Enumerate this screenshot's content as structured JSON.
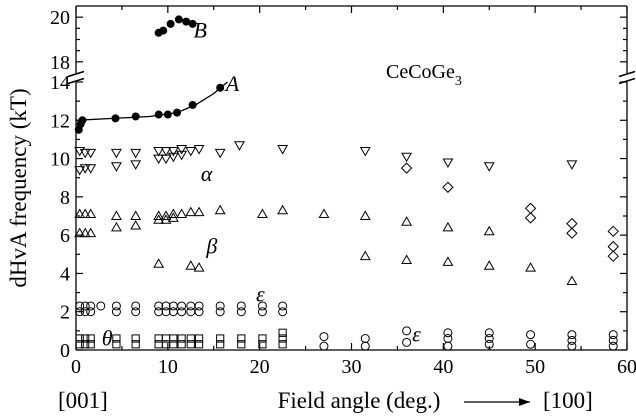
{
  "chart_data": {
    "type": "scatter",
    "title": "",
    "xlabel": "Field angle (deg.)",
    "ylabel": "dHvA frequency (kT)",
    "xlim": [
      0,
      60
    ],
    "x_ticks": [
      0,
      10,
      20,
      30,
      40,
      50,
      60
    ],
    "lower_panel": {
      "ylim": [
        0,
        14
      ],
      "y_ticks": [
        0,
        2,
        4,
        6,
        8,
        10,
        12,
        14
      ]
    },
    "upper_panel": {
      "ylim": [
        17.5,
        20.5
      ],
      "y_ticks": [
        18,
        20
      ]
    },
    "axis_break": true,
    "compound_label": {
      "base": "CeCoGe",
      "sub": "3"
    },
    "direction_labels": {
      "start": "[001]",
      "end": "[100]"
    },
    "branch_labels": [
      {
        "text": "B",
        "x": 12.8,
        "y": 19.4
      },
      {
        "text": "A",
        "x": 16.3,
        "y": 13.9
      },
      {
        "text": "α",
        "x": 13.6,
        "y": 9.2
      },
      {
        "text": "β",
        "x": 14.2,
        "y": 5.4
      },
      {
        "text": "ε",
        "x": 19.6,
        "y": 2.9
      },
      {
        "text": "ε",
        "x": 36.6,
        "y": 0.8
      },
      {
        "text": "θ",
        "x": 2.8,
        "y": 0.6
      }
    ],
    "series": [
      {
        "marker": "filled-circle",
        "points": [
          [
            0.3,
            11.5
          ],
          [
            0.5,
            11.8
          ],
          [
            0.7,
            12.0
          ],
          [
            4.3,
            12.1
          ],
          [
            6.5,
            12.2
          ],
          [
            9,
            12.3
          ],
          [
            10,
            12.3
          ],
          [
            11,
            12.4
          ],
          [
            12.7,
            12.8
          ],
          [
            15.7,
            13.7
          ],
          [
            9,
            19.3
          ],
          [
            9.5,
            19.4
          ],
          [
            10.3,
            19.7
          ],
          [
            11.2,
            19.9
          ],
          [
            12,
            19.8
          ],
          [
            12.7,
            19.7
          ]
        ]
      },
      {
        "marker": "down-triangle",
        "points": [
          [
            0.4,
            9.4
          ],
          [
            0.4,
            10.4
          ],
          [
            1,
            9.5
          ],
          [
            1,
            10.3
          ],
          [
            1.6,
            9.5
          ],
          [
            1.6,
            10.3
          ],
          [
            4.4,
            9.6
          ],
          [
            4.4,
            10.3
          ],
          [
            6.5,
            9.7
          ],
          [
            6.5,
            10.3
          ],
          [
            9,
            10.0
          ],
          [
            9,
            10.4
          ],
          [
            9.8,
            10.0
          ],
          [
            9.8,
            10.4
          ],
          [
            10.6,
            10.1
          ],
          [
            10.6,
            10.4
          ],
          [
            11.5,
            10.2
          ],
          [
            11.5,
            10.5
          ],
          [
            12.5,
            10.4
          ],
          [
            13.4,
            10.5
          ],
          [
            15.7,
            10.3
          ],
          [
            17.8,
            10.7
          ],
          [
            22.5,
            10.5
          ],
          [
            31.5,
            10.4
          ],
          [
            36,
            10.1
          ],
          [
            40.5,
            9.8
          ],
          [
            45,
            9.6
          ],
          [
            54,
            9.7
          ]
        ]
      },
      {
        "marker": "diamond",
        "points": [
          [
            36,
            9.5
          ],
          [
            40.5,
            8.5
          ],
          [
            49.5,
            7.4
          ],
          [
            49.5,
            6.9
          ],
          [
            54,
            6.6
          ],
          [
            54,
            6.1
          ],
          [
            58.5,
            6.2
          ],
          [
            58.5,
            5.4
          ],
          [
            58.5,
            4.9
          ]
        ]
      },
      {
        "marker": "up-triangle",
        "points": [
          [
            0.4,
            6.1
          ],
          [
            0.4,
            7.1
          ],
          [
            1,
            6.1
          ],
          [
            1,
            7.1
          ],
          [
            1.6,
            6.1
          ],
          [
            1.6,
            7.1
          ],
          [
            4.4,
            6.4
          ],
          [
            4.4,
            7.0
          ],
          [
            6.5,
            6.5
          ],
          [
            6.5,
            7.0
          ],
          [
            9,
            6.8
          ],
          [
            9,
            7.0
          ],
          [
            9.8,
            6.8
          ],
          [
            9.8,
            7.0
          ],
          [
            10.6,
            6.9
          ],
          [
            10.6,
            7.1
          ],
          [
            11.5,
            7.1
          ],
          [
            12.5,
            7.2
          ],
          [
            13.4,
            7.2
          ],
          [
            15.7,
            7.3
          ],
          [
            20.3,
            7.1
          ],
          [
            22.5,
            7.3
          ],
          [
            27,
            7.1
          ],
          [
            31.5,
            7.0
          ],
          [
            36,
            6.7
          ],
          [
            40.5,
            6.4
          ],
          [
            45,
            6.2
          ],
          [
            9,
            4.5
          ],
          [
            12.5,
            4.4
          ],
          [
            13.4,
            4.3
          ],
          [
            31.5,
            4.9
          ],
          [
            36,
            4.7
          ],
          [
            40.5,
            4.6
          ],
          [
            45,
            4.4
          ],
          [
            49.5,
            4.3
          ],
          [
            54,
            3.6
          ]
        ]
      },
      {
        "marker": "open-circle",
        "points": [
          [
            0.4,
            2.0
          ],
          [
            0.4,
            2.3
          ],
          [
            1,
            2.0
          ],
          [
            1,
            2.3
          ],
          [
            1.6,
            2.0
          ],
          [
            1.6,
            2.3
          ],
          [
            2.7,
            2.3
          ],
          [
            4.4,
            2.0
          ],
          [
            4.4,
            2.3
          ],
          [
            6.5,
            2.0
          ],
          [
            6.5,
            2.3
          ],
          [
            9,
            2.0
          ],
          [
            9,
            2.3
          ],
          [
            9.8,
            2.0
          ],
          [
            9.8,
            2.3
          ],
          [
            10.6,
            2.0
          ],
          [
            10.6,
            2.3
          ],
          [
            11.5,
            2.0
          ],
          [
            11.5,
            2.3
          ],
          [
            12.5,
            2.0
          ],
          [
            12.5,
            2.3
          ],
          [
            13.4,
            2.0
          ],
          [
            13.4,
            2.3
          ],
          [
            15.7,
            2.0
          ],
          [
            15.7,
            2.3
          ],
          [
            18,
            2.0
          ],
          [
            18,
            2.3
          ],
          [
            20.3,
            2.0
          ],
          [
            20.3,
            2.3
          ],
          [
            22.5,
            2.0
          ],
          [
            22.5,
            2.3
          ],
          [
            27,
            0.2
          ],
          [
            27,
            0.7
          ],
          [
            31.5,
            0.2
          ],
          [
            31.5,
            0.6
          ],
          [
            36,
            0.4
          ],
          [
            36,
            1.0
          ],
          [
            40.5,
            0.2
          ],
          [
            40.5,
            0.6
          ],
          [
            40.5,
            0.9
          ],
          [
            45,
            0.3
          ],
          [
            45,
            0.6
          ],
          [
            45,
            0.9
          ],
          [
            49.5,
            0.3
          ],
          [
            49.5,
            0.8
          ],
          [
            54,
            0.2
          ],
          [
            54,
            0.5
          ],
          [
            54,
            0.8
          ],
          [
            58.5,
            0.2
          ],
          [
            58.5,
            0.5
          ],
          [
            58.5,
            0.8
          ]
        ]
      },
      {
        "marker": "open-square",
        "points": [
          [
            0.4,
            0.3
          ],
          [
            0.4,
            0.6
          ],
          [
            1,
            0.3
          ],
          [
            1,
            0.6
          ],
          [
            1.6,
            0.3
          ],
          [
            1.6,
            0.6
          ],
          [
            4.4,
            0.3
          ],
          [
            4.4,
            0.6
          ],
          [
            6.5,
            0.3
          ],
          [
            6.5,
            0.6
          ],
          [
            9,
            0.3
          ],
          [
            9,
            0.6
          ],
          [
            9.8,
            0.3
          ],
          [
            9.8,
            0.6
          ],
          [
            10.6,
            0.3
          ],
          [
            10.6,
            0.6
          ],
          [
            11.5,
            0.3
          ],
          [
            11.5,
            0.6
          ],
          [
            12.5,
            0.3
          ],
          [
            12.5,
            0.6
          ],
          [
            13.4,
            0.3
          ],
          [
            13.4,
            0.6
          ],
          [
            15.7,
            0.3
          ],
          [
            15.7,
            0.6
          ],
          [
            18,
            0.3
          ],
          [
            18,
            0.6
          ],
          [
            20.3,
            0.3
          ],
          [
            20.3,
            0.6
          ],
          [
            22.5,
            0.3
          ],
          [
            22.5,
            0.6
          ],
          [
            22.5,
            0.9
          ]
        ]
      }
    ],
    "fit_curves": [
      {
        "name": "A",
        "points": [
          [
            0,
            12.0
          ],
          [
            4,
            12.1
          ],
          [
            8,
            12.2
          ],
          [
            11,
            12.4
          ],
          [
            13,
            12.8
          ],
          [
            15,
            13.4
          ],
          [
            16.5,
            14.0
          ]
        ]
      }
    ]
  }
}
